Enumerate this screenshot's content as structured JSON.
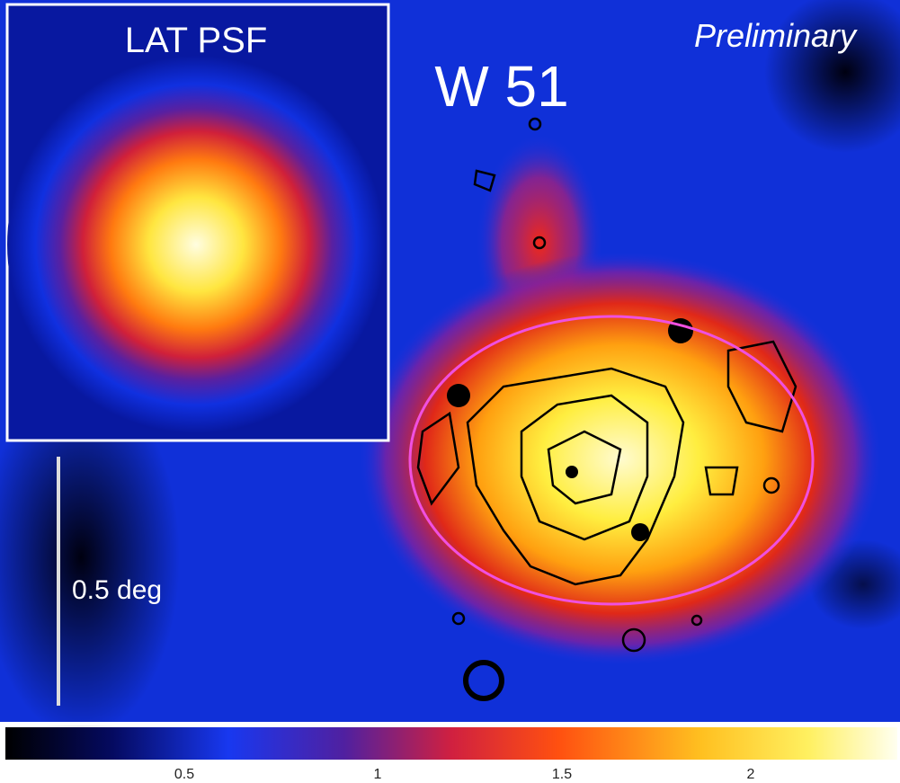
{
  "inset": {
    "title": "LAT PSF"
  },
  "labels": {
    "preliminary": "Preliminary",
    "source": "W 51",
    "scale": "0.5 deg"
  },
  "colorbar": {
    "ticks": [
      "0.5",
      "1",
      "1.5",
      "2"
    ]
  }
}
